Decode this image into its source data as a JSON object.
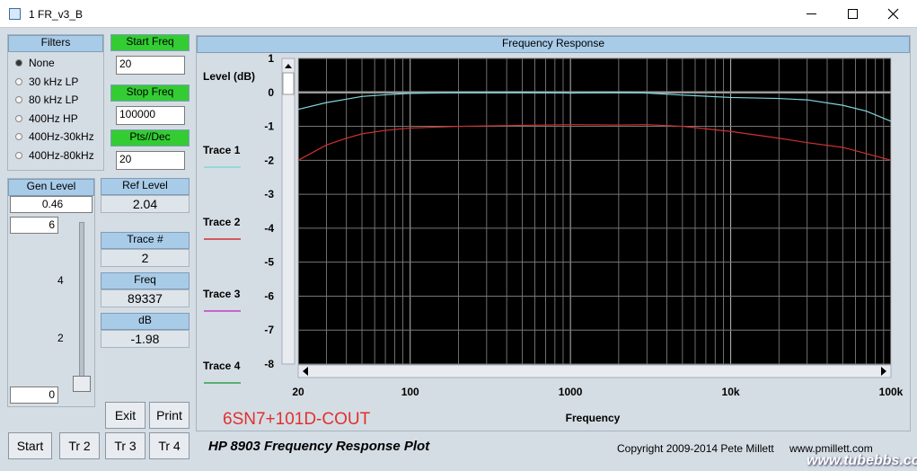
{
  "window": {
    "title": "1 FR_v3_B"
  },
  "filters": {
    "title": "Filters",
    "options": [
      "None",
      "30 kHz LP",
      "80 kHz LP",
      "400Hz HP",
      "400Hz-30kHz",
      "400Hz-80kHz"
    ],
    "selected": 0
  },
  "start_freq": {
    "label": "Start Freq",
    "value": "20"
  },
  "stop_freq": {
    "label": "Stop Freq",
    "value": "100000"
  },
  "pts_dec": {
    "label": "Pts//Dec",
    "value": "20"
  },
  "gen_level": {
    "label": "Gen Level",
    "value": "0.46",
    "slider_max": "6",
    "slider_min": "0",
    "slider_ticks": [
      "4",
      "2"
    ]
  },
  "readouts": [
    {
      "label": "Ref Level",
      "value": "2.04"
    },
    {
      "label": "Trace #",
      "value": "2"
    },
    {
      "label": "Freq",
      "value": "89337"
    },
    {
      "label": "dB",
      "value": "-1.98"
    }
  ],
  "buttons": [
    "Exit",
    "Print",
    "Start",
    "Tr 2",
    "Tr 3",
    "Tr 4"
  ],
  "note": "6SN7+101D-COUT",
  "footer": {
    "title": "HP 8903 Frequency Response Plot",
    "copyright": "Copyright 2009-2014 Pete Millett",
    "website": "www.pmillett.com",
    "watermark": "www.tubebbs.com"
  },
  "chart_data": {
    "type": "line",
    "title": "Frequency Response",
    "y_label": "Level (dB)",
    "x_label": "Frequency",
    "log_x": true,
    "grid": true,
    "xlim": [
      20,
      100000
    ],
    "ylim": [
      -8,
      1
    ],
    "xticks": [
      20,
      100,
      1000,
      {
        "value": 10000,
        "label": "10k"
      },
      {
        "value": 100000,
        "label": "100k"
      }
    ],
    "yticks": [
      1,
      0,
      -1,
      -2,
      -3,
      -4,
      -5,
      -6,
      -7,
      -8
    ],
    "x": [
      20,
      30,
      40,
      50,
      70,
      100,
      200,
      500,
      1000,
      2000,
      3000,
      5000,
      10000,
      20000,
      30000,
      50000,
      70000,
      100000
    ],
    "series": [
      {
        "name": "Trace 1",
        "color": "#7fd6dc",
        "values": [
          -0.5,
          -0.3,
          -0.2,
          -0.12,
          -0.07,
          -0.03,
          -0.01,
          0,
          -0.02,
          0,
          -0.02,
          -0.08,
          -0.15,
          -0.18,
          -0.22,
          -0.38,
          -0.55,
          -0.85
        ]
      },
      {
        "name": "Trace 2",
        "color": "#d03030",
        "values": [
          -2.0,
          -1.55,
          -1.35,
          -1.22,
          -1.12,
          -1.05,
          -1.0,
          -0.97,
          -0.95,
          -0.96,
          -0.95,
          -1.0,
          -1.15,
          -1.35,
          -1.48,
          -1.62,
          -1.8,
          -2.0
        ]
      },
      {
        "name": "Trace 3",
        "color": "#c040c0",
        "values": [
          null,
          null,
          null,
          null,
          null,
          null,
          null,
          null,
          null,
          null,
          null,
          null,
          null,
          null,
          null,
          null,
          null,
          null
        ]
      },
      {
        "name": "Trace 4",
        "color": "#30a050",
        "values": [
          null,
          null,
          null,
          null,
          null,
          null,
          null,
          null,
          null,
          null,
          null,
          null,
          null,
          null,
          null,
          null,
          null,
          null
        ]
      }
    ]
  }
}
